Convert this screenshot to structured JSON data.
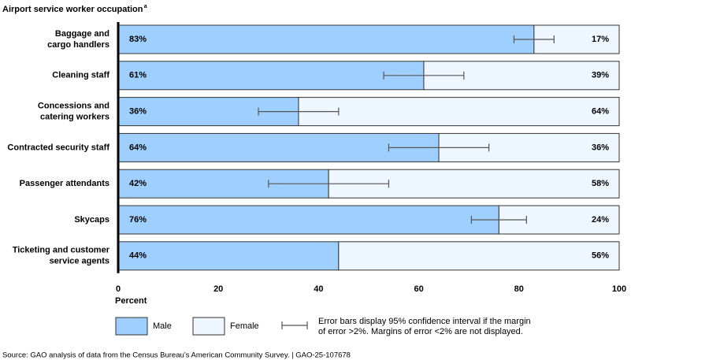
{
  "chart_data": {
    "type": "stacked-barh",
    "title": "Airport service worker occupation",
    "title_marker": "a",
    "categories": [
      [
        "Baggage and",
        "cargo handlers"
      ],
      [
        "Cleaning staff"
      ],
      [
        "Concessions and",
        "catering workers"
      ],
      [
        "Contracted security staff"
      ],
      [
        "Passenger attendants"
      ],
      [
        "Skycaps"
      ],
      [
        "Ticketing and customer",
        "service agents"
      ]
    ],
    "series": [
      {
        "name": "Male",
        "color": "#9fcfff",
        "values": [
          83,
          61,
          36,
          64,
          42,
          76,
          44
        ],
        "value_labels": [
          "83%",
          "61%",
          "36%",
          "64%",
          "42%",
          "76%",
          "44%"
        ],
        "errors": [
          4,
          8,
          8,
          10,
          12,
          5.5,
          null
        ]
      },
      {
        "name": "Female",
        "color": "#eef6ff",
        "values": [
          17,
          39,
          64,
          36,
          58,
          24,
          56
        ],
        "value_labels": [
          "17%",
          "39%",
          "64%",
          "36%",
          "58%",
          "24%",
          "56%"
        ]
      }
    ],
    "xlim": [
      0,
      100
    ],
    "xticks": [
      0,
      20,
      40,
      60,
      80,
      100
    ],
    "xlabel": "Percent",
    "legend_note": [
      "Error bars display 95% confidence interval if the margin",
      "of error >2%. Margins of error <2% are not displayed."
    ],
    "source": "Source: GAO analysis of data from the Census Bureau’s American Community Survey.  |  GAO-25-107678"
  }
}
